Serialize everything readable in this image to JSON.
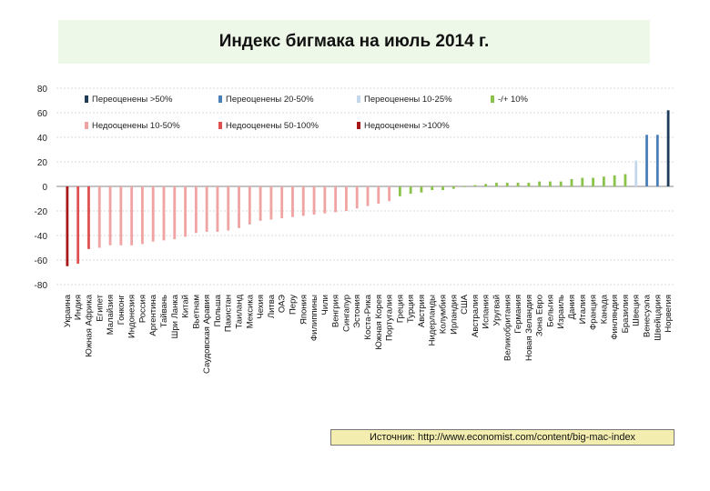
{
  "chart_data": {
    "type": "bar",
    "title": "Индекс бигмака на июль 2014 г.",
    "source": "Источник: http://www.economist.com/content/big-mac-index",
    "ylim": [
      -80,
      80
    ],
    "yticks": [
      80,
      60,
      40,
      20,
      0,
      -20,
      -40,
      -60,
      -80
    ],
    "legend": [
      {
        "label": "Переоценены >50%",
        "color": "#1f3b5a"
      },
      {
        "label": "Переоценены 20-50%",
        "color": "#4a7fb8"
      },
      {
        "label": "Переоценены 10-25%",
        "color": "#c5d7ea"
      },
      {
        "label": "-/+ 10%",
        "color": "#8bc34a"
      },
      {
        "label": "Недооценены 10-50%",
        "color": "#f0a3a3"
      },
      {
        "label": "Недооценены 50-100%",
        "color": "#e05050"
      },
      {
        "label": "Недооценены >100%",
        "color": "#a81818"
      }
    ],
    "categories": [
      "Украина",
      "Индия",
      "Южная Африка",
      "Египет",
      "Малайзия",
      "Гонконг",
      "Индонезия",
      "Россия",
      "Аргентина",
      "Тайвань",
      "Шри Ланка",
      "Китай",
      "Вьетнам",
      "Саудовская Аравия",
      "Польша",
      "Пакистан",
      "Таиланд",
      "Мексика",
      "Чехия",
      "Литва",
      "ОАЭ",
      "Перу",
      "Япония",
      "Филиппины",
      "Чили",
      "Венгрия",
      "Сингапур",
      "Эстония",
      "Коста-Рика",
      "Южная Корея",
      "Португалия",
      "Греция",
      "Турция",
      "Австрия",
      "Нидерланды",
      "Колумбия",
      "Ирландия",
      "США",
      "Австралия",
      "Испания",
      "Уругвай",
      "Великобритания",
      "Германия",
      "Новая Зеландия",
      "Зона Евро",
      "Бельгия",
      "Израиль",
      "Дания",
      "Италия",
      "Франция",
      "Канада",
      "Финляндия",
      "Бразилия",
      "Швеция",
      "Венесуэла",
      "Швейцария",
      "Норвегия"
    ],
    "values": [
      -65,
      -63,
      -51,
      -50,
      -48,
      -48,
      -48,
      -47,
      -45,
      -44,
      -43,
      -41,
      -38,
      -37,
      -37,
      -36,
      -34,
      -31,
      -28,
      -27,
      -26,
      -25,
      -24,
      -23,
      -22,
      -21,
      -20,
      -18,
      -16,
      -14,
      -12,
      -8,
      -6,
      -5,
      -3,
      -3,
      -2,
      0,
      1,
      2,
      3,
      3,
      3,
      3,
      4,
      4,
      4,
      6,
      7,
      7,
      8,
      9,
      10,
      21,
      42,
      42,
      62
    ],
    "groups": [
      "over50",
      "over20",
      "over10",
      "near",
      "under10",
      "under50",
      "under100"
    ],
    "colors": {
      "over50": "#1f3b5a",
      "over20": "#4a7fb8",
      "over10": "#c5d7ea",
      "near": "#8bc34a",
      "under10": "#f0a3a3",
      "under50": "#e05050",
      "under100": "#a81818"
    }
  }
}
